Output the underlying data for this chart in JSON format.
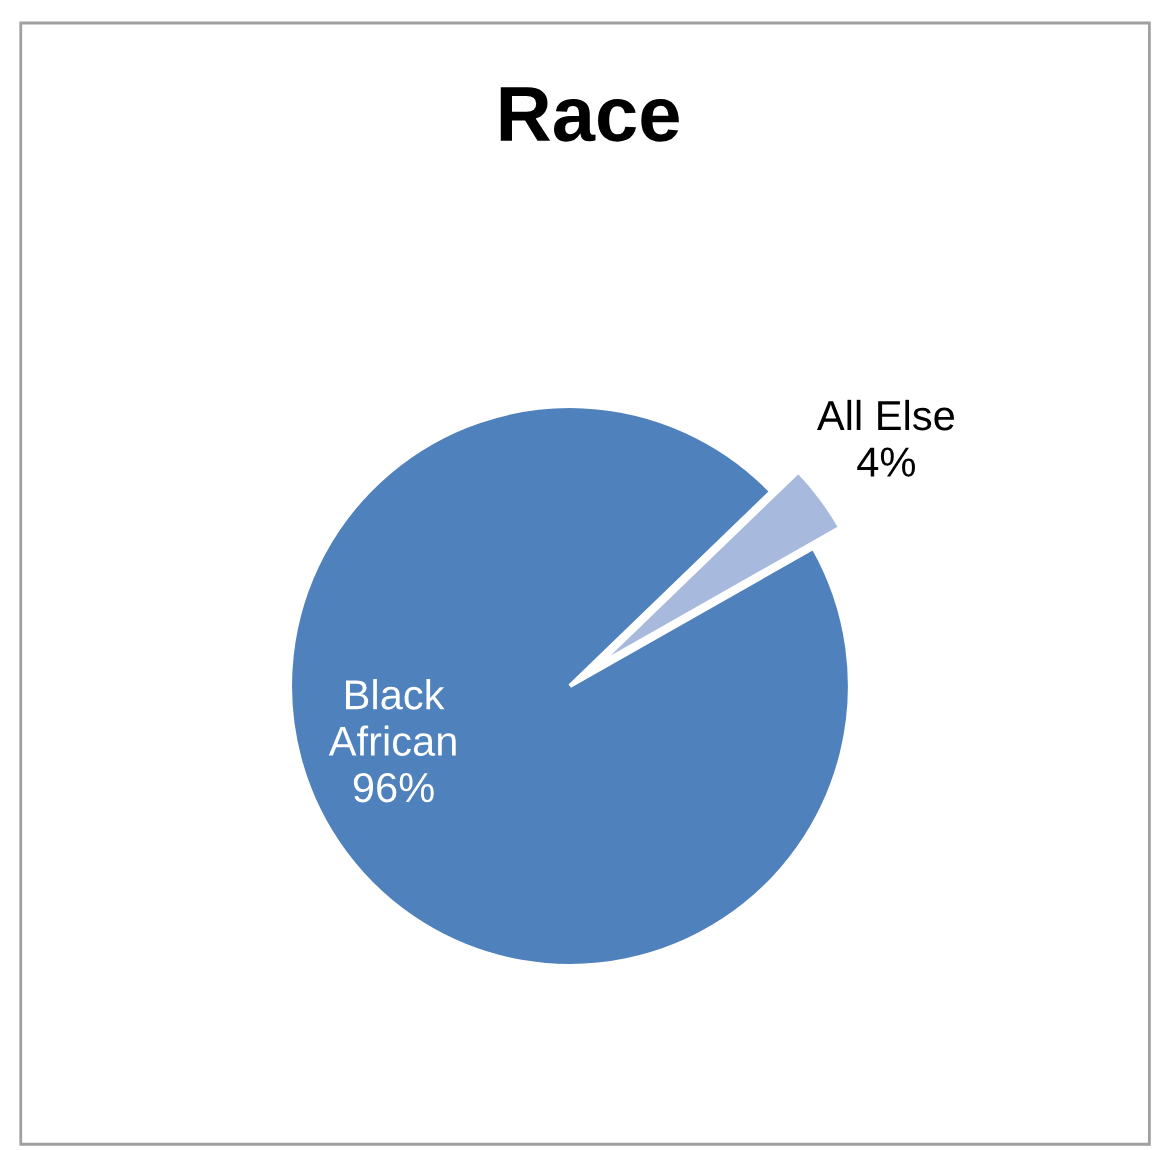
{
  "chart_data": {
    "type": "pie",
    "title": "Race",
    "categories": [
      "Black African",
      "All Else"
    ],
    "values": [
      96,
      4
    ],
    "colors": [
      "#4f81bd",
      "#a7bade"
    ],
    "value_labels": [
      "96%",
      "4%"
    ],
    "legend": false
  }
}
